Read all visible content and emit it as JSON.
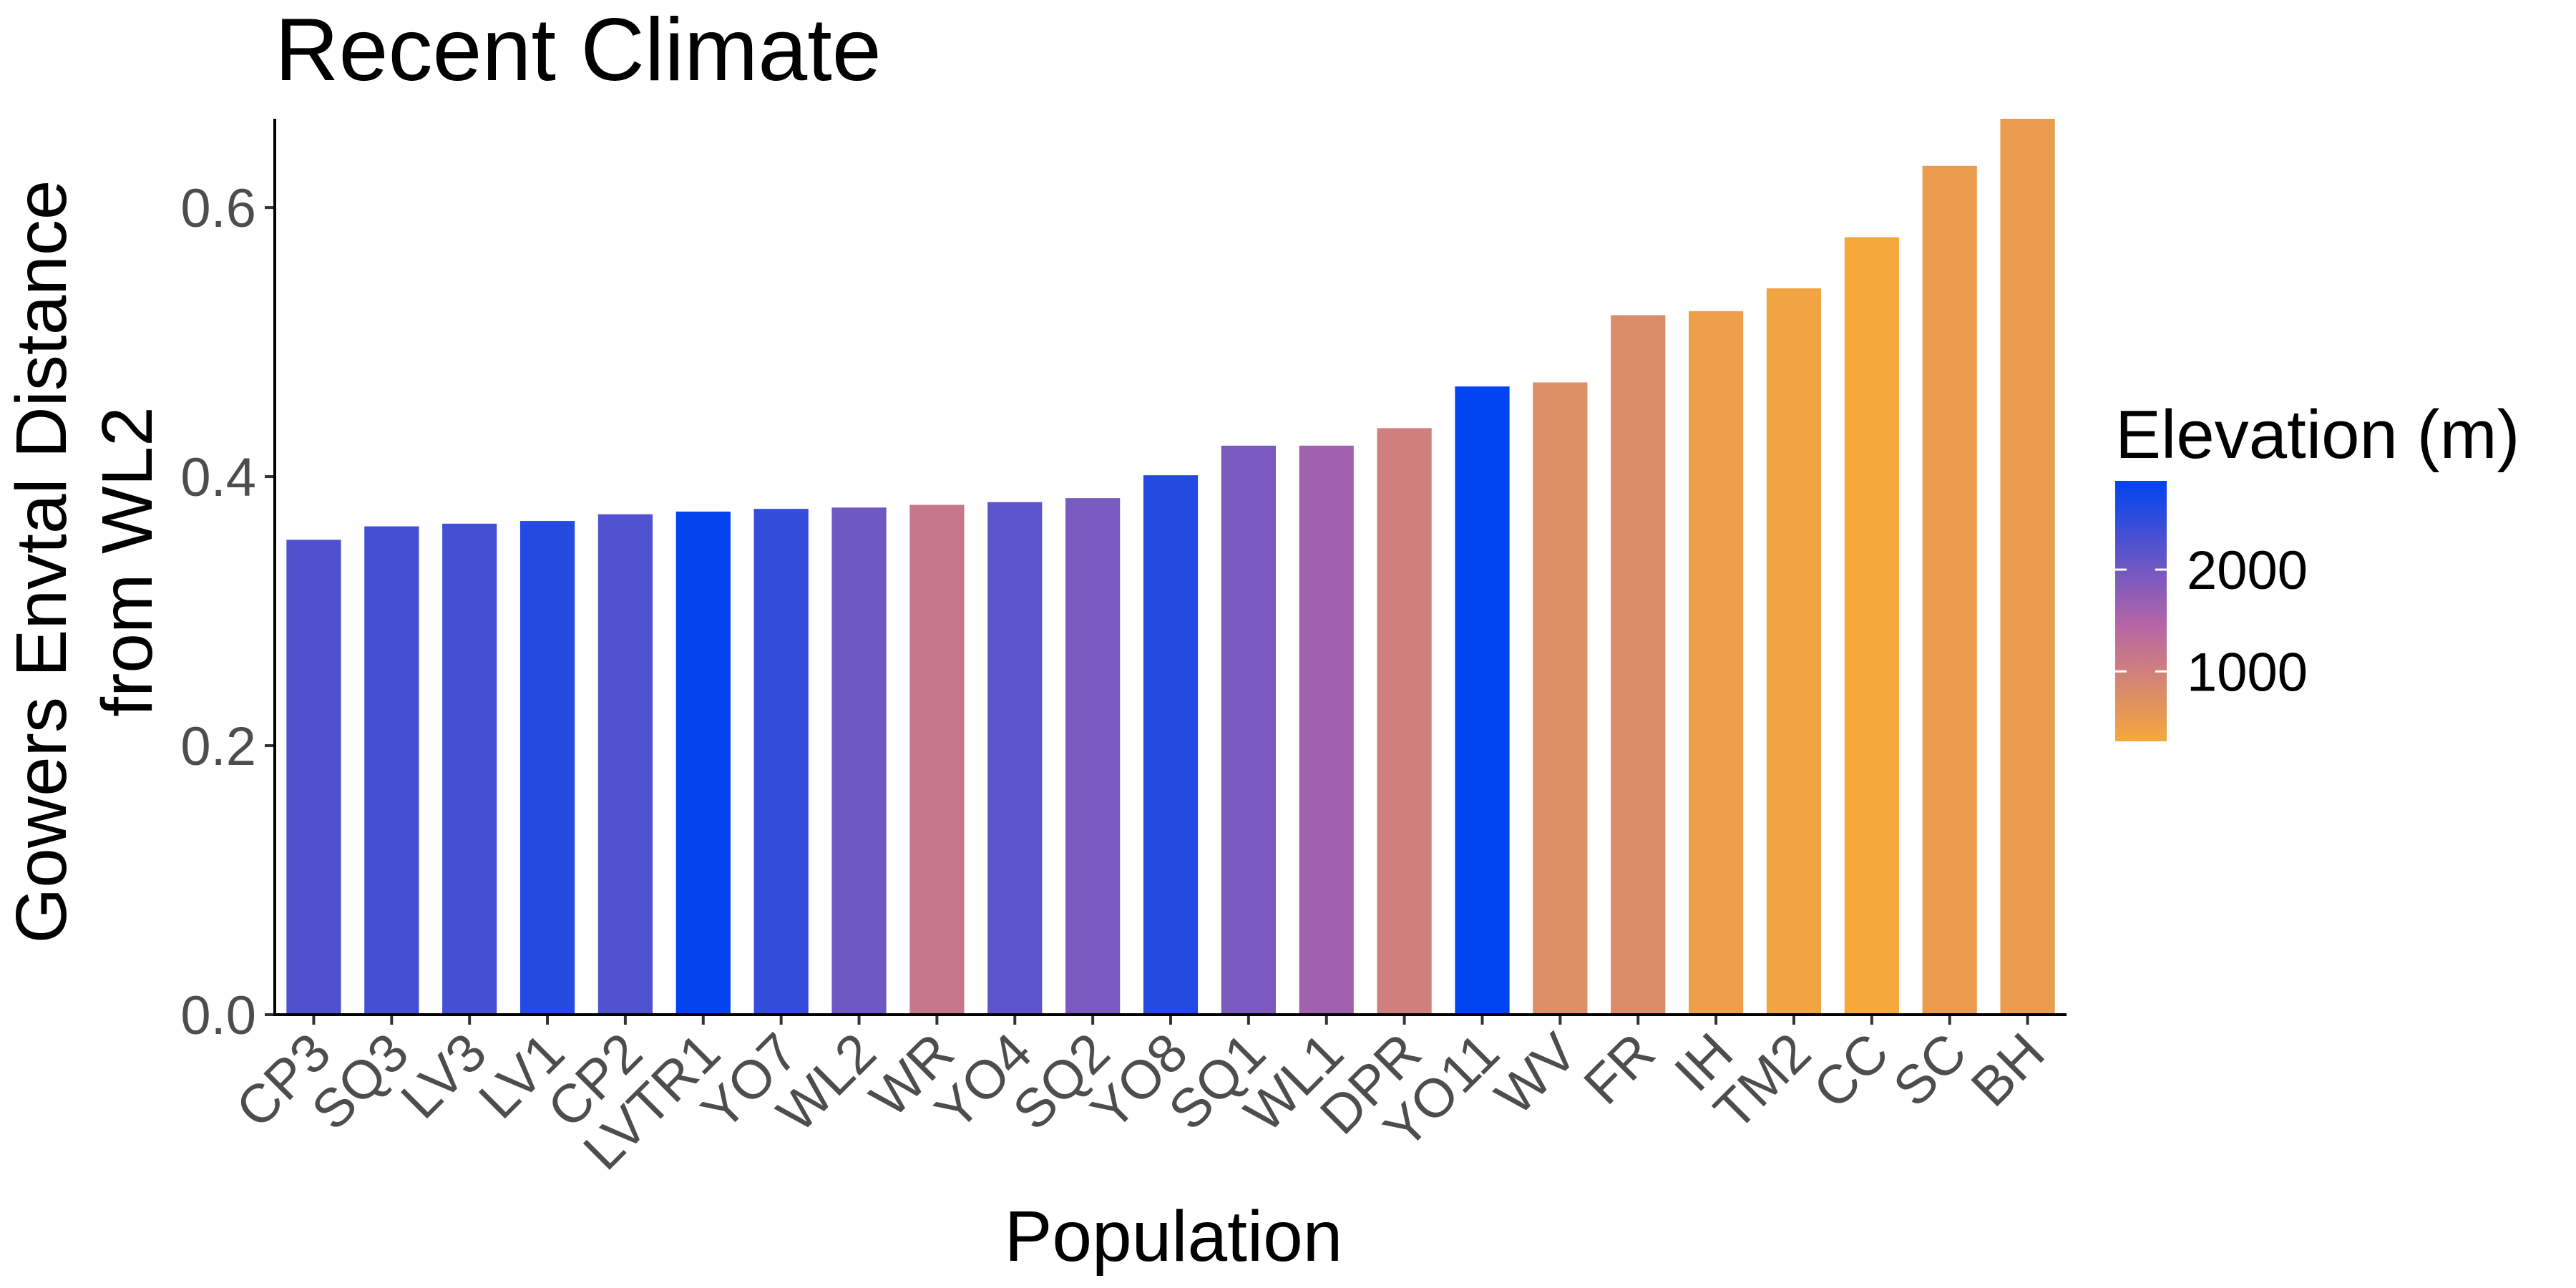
{
  "chart_data": {
    "type": "bar",
    "title": "Recent Climate",
    "xlabel": "Population",
    "ylabel_lines": [
      "Gowers Envtal Distance",
      "from WL2"
    ],
    "ylim": [
      0,
      0.666
    ],
    "yticks": [
      0.0,
      0.2,
      0.4,
      0.6
    ],
    "ytick_labels": [
      "0.0",
      "0.2",
      "0.4",
      "0.6"
    ],
    "grid": false,
    "categories": [
      "CP3",
      "SQ3",
      "LV3",
      "LV1",
      "CP2",
      "LVTR1",
      "YO7",
      "WL2",
      "WR",
      "YO4",
      "SQ2",
      "YO8",
      "SQ1",
      "WL1",
      "DPR",
      "YO11",
      "WV",
      "FR",
      "IH",
      "TM2",
      "CC",
      "SC",
      "BH"
    ],
    "values": [
      0.353,
      0.363,
      0.365,
      0.367,
      0.372,
      0.374,
      0.376,
      0.377,
      0.379,
      0.381,
      0.384,
      0.401,
      0.423,
      0.423,
      0.436,
      0.467,
      0.47,
      0.52,
      0.523,
      0.54,
      0.578,
      0.631,
      0.666
    ],
    "elevation_m": [
      2266,
      2353,
      2353,
      2593,
      2244,
      2841,
      2470,
      2020,
      1158,
      2158,
      1934,
      2591,
      1921,
      1614,
      1019,
      2872,
      749,
      787,
      454,
      379,
      313,
      511,
      511
    ],
    "legend": {
      "title": "Elevation (m)",
      "placement": "right",
      "range": [
        313,
        2872
      ],
      "ticks": [
        2000,
        1000
      ],
      "tick_labels": [
        "2000",
        "1000"
      ],
      "color_low": "#F5A83C",
      "color_mid": "#B565A7",
      "color_high": "#0043F0"
    }
  }
}
